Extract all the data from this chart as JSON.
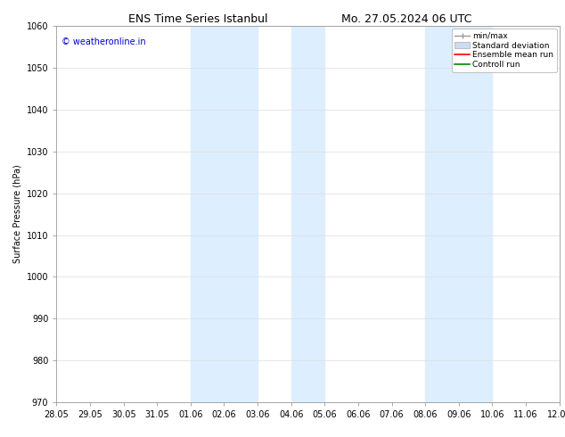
{
  "title_left": "ENS Time Series Istanbul",
  "title_right": "Mo. 27.05.2024 06 UTC",
  "ylabel": "Surface Pressure (hPa)",
  "ylim": [
    970,
    1060
  ],
  "yticks": [
    970,
    980,
    990,
    1000,
    1010,
    1020,
    1030,
    1040,
    1050,
    1060
  ],
  "xlim_start": 0,
  "xlim_end": 45,
  "xtick_labels": [
    "28.05",
    "29.05",
    "30.05",
    "31.05",
    "01.06",
    "02.06",
    "03.06",
    "04.06",
    "05.06",
    "06.06",
    "07.06",
    "08.06",
    "09.06",
    "10.06",
    "11.06",
    "12.06"
  ],
  "xtick_positions": [
    0,
    3,
    6,
    9,
    12,
    15,
    18,
    21,
    24,
    27,
    30,
    33,
    36,
    39,
    42,
    45
  ],
  "shaded_regions": [
    {
      "x_start": 12,
      "x_end": 18,
      "color": "#ddeeff"
    },
    {
      "x_start": 21,
      "x_end": 24,
      "color": "#ddeeff"
    },
    {
      "x_start": 33,
      "x_end": 39,
      "color": "#ddeeff"
    }
  ],
  "watermark_text": "© weatheronline.in",
  "watermark_color": "#0000cc",
  "legend_labels": [
    "min/max",
    "Standard deviation",
    "Ensemble mean run",
    "Controll run"
  ],
  "legend_colors": [
    "#999999",
    "#ccddef",
    "#ff0000",
    "#008800"
  ],
  "background_color": "#ffffff",
  "grid_color": "#dddddd",
  "title_fontsize": 9,
  "label_fontsize": 7,
  "tick_fontsize": 7,
  "watermark_fontsize": 7
}
